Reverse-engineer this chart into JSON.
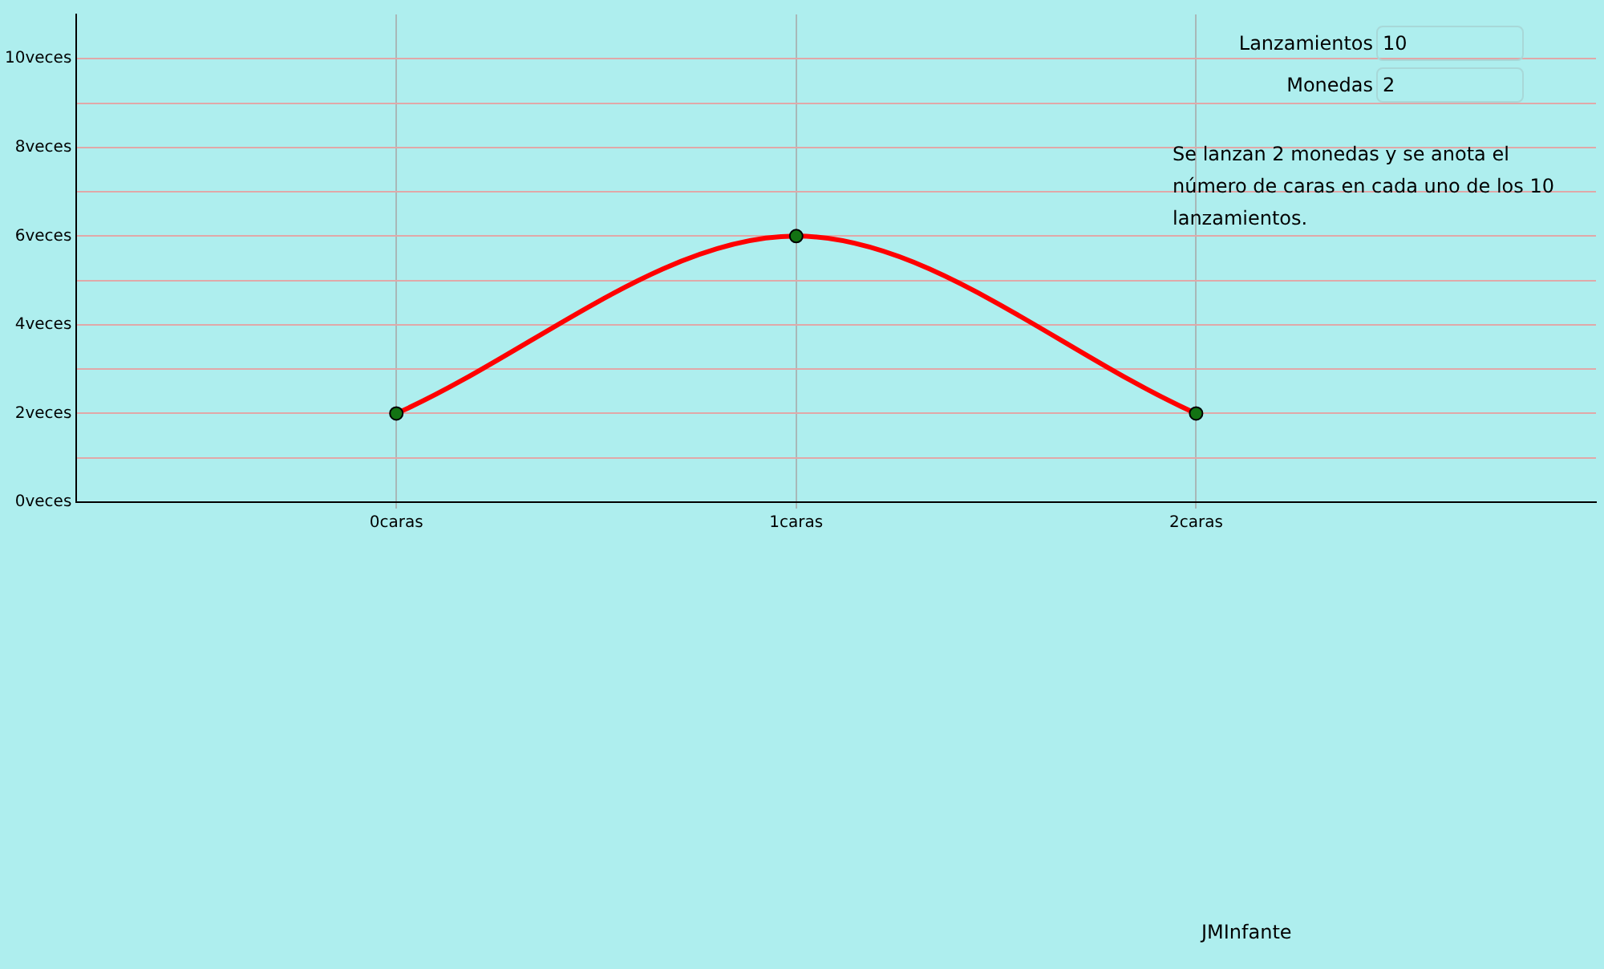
{
  "chart_data": {
    "type": "line",
    "x": [
      0,
      1,
      2
    ],
    "series": [
      {
        "color": "#ff0000",
        "values": [
          2,
          6,
          2
        ]
      }
    ],
    "xlim": [
      -0.8,
      3
    ],
    "xticks": [
      {
        "value": 0,
        "label": "0caras"
      },
      {
        "value": 1,
        "label": "1caras"
      },
      {
        "value": 2,
        "label": "2caras"
      }
    ],
    "ylim": [
      0,
      11
    ],
    "yticks": [
      {
        "value": 0,
        "label": "0veces"
      },
      {
        "value": 1,
        "label": null
      },
      {
        "value": 2,
        "label": "2veces"
      },
      {
        "value": 3,
        "label": null
      },
      {
        "value": 4,
        "label": "4veces"
      },
      {
        "value": 5,
        "label": null
      },
      {
        "value": 6,
        "label": "6veces"
      },
      {
        "value": 7,
        "label": null
      },
      {
        "value": 8,
        "label": "8veces"
      },
      {
        "value": 9,
        "label": null
      },
      {
        "value": 10,
        "label": "10veces"
      }
    ],
    "grid": true,
    "marker": "circle",
    "legend": false,
    "annotations": [
      "Lanzamientos",
      "10",
      "Monedas",
      "2",
      "Se lanzan 2 monedas y se anota el número de caras en cada uno de los 10 lanzamientos.",
      "JMInfante"
    ]
  }
}
